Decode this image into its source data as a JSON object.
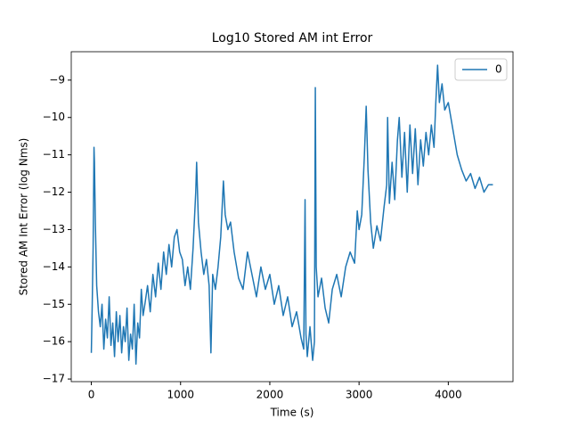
{
  "chart_data": {
    "type": "line",
    "title": "Log10 Stored AM int Error",
    "x_label": "Time (s)",
    "y_label": "Stored AM Int Error (log Nms)",
    "x": [
      0,
      10,
      20,
      30,
      35,
      45,
      60,
      80,
      100,
      120,
      140,
      160,
      180,
      200,
      220,
      240,
      260,
      280,
      300,
      320,
      340,
      360,
      380,
      400,
      420,
      440,
      460,
      480,
      500,
      520,
      540,
      560,
      580,
      600,
      630,
      660,
      690,
      720,
      750,
      780,
      810,
      840,
      870,
      900,
      930,
      960,
      990,
      1020,
      1050,
      1080,
      1110,
      1140,
      1170,
      1180,
      1200,
      1230,
      1260,
      1290,
      1320,
      1340,
      1360,
      1390,
      1420,
      1450,
      1480,
      1500,
      1530,
      1560,
      1600,
      1650,
      1700,
      1750,
      1800,
      1850,
      1900,
      1950,
      2000,
      2050,
      2100,
      2150,
      2200,
      2250,
      2300,
      2350,
      2380,
      2395,
      2405,
      2420,
      2450,
      2480,
      2500,
      2510,
      2520,
      2540,
      2580,
      2620,
      2660,
      2700,
      2750,
      2800,
      2850,
      2900,
      2950,
      2980,
      3000,
      3030,
      3060,
      3080,
      3100,
      3130,
      3160,
      3200,
      3240,
      3280,
      3310,
      3320,
      3340,
      3370,
      3400,
      3430,
      3450,
      3480,
      3510,
      3540,
      3570,
      3600,
      3630,
      3660,
      3690,
      3720,
      3750,
      3780,
      3810,
      3840,
      3860,
      3880,
      3900,
      3930,
      3960,
      4000,
      4050,
      4100,
      4150,
      4200,
      4250,
      4300,
      4350,
      4400,
      4450,
      4500
    ],
    "series": [
      {
        "name": "0",
        "color": "#1f77b4",
        "values": [
          -16.3,
          -15.0,
          -13.5,
          -10.8,
          -11.2,
          -12.8,
          -14.5,
          -15.2,
          -15.6,
          -15.0,
          -16.2,
          -15.4,
          -15.9,
          -14.8,
          -16.1,
          -15.5,
          -16.4,
          -15.2,
          -16.0,
          -15.3,
          -16.3,
          -15.6,
          -16.0,
          -15.1,
          -16.5,
          -15.8,
          -16.2,
          -15.0,
          -16.6,
          -15.5,
          -15.9,
          -14.6,
          -15.3,
          -15.0,
          -14.5,
          -15.2,
          -14.2,
          -14.8,
          -13.9,
          -14.6,
          -13.6,
          -14.2,
          -13.4,
          -14.0,
          -13.2,
          -13.0,
          -13.6,
          -13.8,
          -14.5,
          -14.0,
          -14.6,
          -13.5,
          -12.0,
          -11.2,
          -12.8,
          -13.6,
          -14.2,
          -13.8,
          -14.5,
          -16.3,
          -14.2,
          -14.6,
          -14.0,
          -13.2,
          -11.7,
          -12.6,
          -13.0,
          -12.8,
          -13.6,
          -14.3,
          -14.6,
          -13.6,
          -14.2,
          -14.8,
          -14.0,
          -14.6,
          -14.2,
          -15.0,
          -14.5,
          -15.3,
          -14.8,
          -15.6,
          -15.2,
          -15.9,
          -16.2,
          -12.2,
          -15.8,
          -16.4,
          -15.6,
          -16.5,
          -16.0,
          -9.2,
          -14.0,
          -14.8,
          -14.3,
          -15.1,
          -15.5,
          -14.6,
          -14.2,
          -14.8,
          -14.0,
          -13.6,
          -13.9,
          -12.5,
          -13.0,
          -12.6,
          -11.0,
          -9.7,
          -11.4,
          -12.8,
          -13.5,
          -12.9,
          -13.3,
          -12.4,
          -11.8,
          -10.0,
          -12.3,
          -11.2,
          -12.2,
          -10.6,
          -10.0,
          -11.6,
          -10.4,
          -12.0,
          -10.2,
          -11.5,
          -10.3,
          -11.8,
          -10.6,
          -11.3,
          -10.4,
          -11.0,
          -10.2,
          -10.8,
          -9.6,
          -8.6,
          -9.6,
          -9.1,
          -9.8,
          -9.6,
          -10.3,
          -11.0,
          -11.4,
          -11.7,
          -11.5,
          -11.9,
          -11.6,
          -12.0,
          -11.8,
          -11.8
        ]
      }
    ],
    "xlim": [
      -225,
      4725
    ],
    "ylim": [
      -17.07,
      -8.24
    ],
    "xticks": [
      0,
      1000,
      2000,
      3000,
      4000
    ],
    "yticks": [
      {
        "value": -17,
        "label": "−17"
      },
      {
        "value": -16,
        "label": "−16"
      },
      {
        "value": -15,
        "label": "−15"
      },
      {
        "value": -14,
        "label": "−14"
      },
      {
        "value": -13,
        "label": "−13"
      },
      {
        "value": -12,
        "label": "−12"
      },
      {
        "value": -11,
        "label": "−11"
      },
      {
        "value": -10,
        "label": "−10"
      },
      {
        "value": -9,
        "label": "−9"
      }
    ],
    "legend": "upper right"
  }
}
